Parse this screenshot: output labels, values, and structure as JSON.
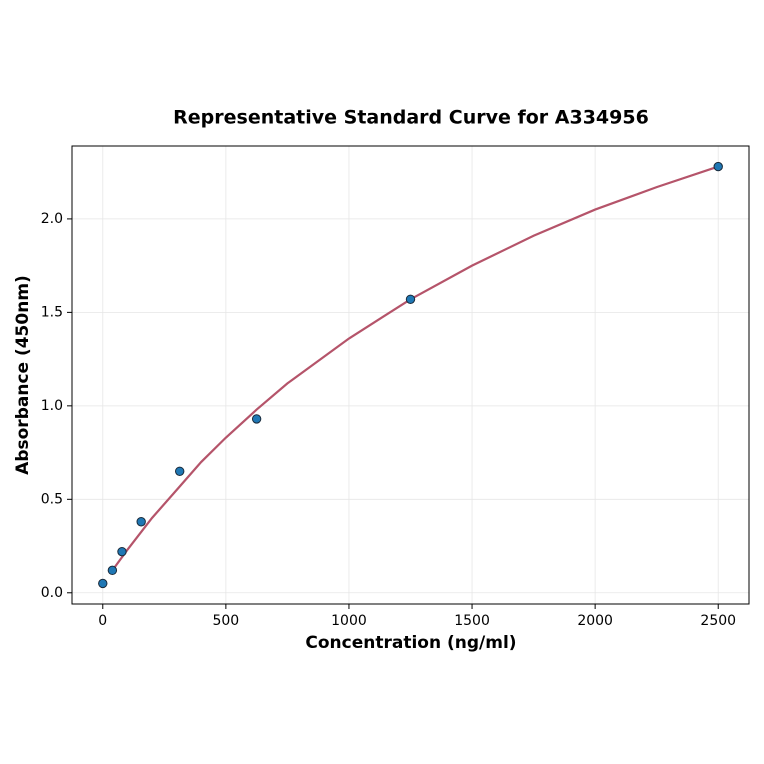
{
  "chart_data": {
    "type": "scatter",
    "title": "Representative Standard Curve for A334956",
    "x_label": "Concentration (ng/ml)",
    "y_label": "Absorbance (450nm)",
    "xlim": [
      -125,
      2625
    ],
    "ylim": [
      -0.06,
      2.39
    ],
    "xticks": [
      0,
      500,
      1000,
      1500,
      2000,
      2500
    ],
    "yticks": [
      {
        "value": 0,
        "label": "0.0"
      },
      {
        "value": 0.5,
        "label": "0.5"
      },
      {
        "value": 1,
        "label": "1.0"
      },
      {
        "value": 1.5,
        "label": "1.5"
      },
      {
        "value": 2,
        "label": "2.0"
      }
    ],
    "grid": true,
    "series": [
      {
        "type": "scatter",
        "color": "#1f77b4",
        "x": [
          0,
          39,
          78,
          156,
          312.5,
          625,
          1250,
          2500
        ],
        "values": [
          0.05,
          0.12,
          0.22,
          0.38,
          0.65,
          0.93,
          1.57,
          2.28
        ]
      },
      {
        "type": "line",
        "color": "#b5546a",
        "x": [
          39,
          100,
          200,
          300,
          400,
          500,
          625,
          750,
          1000,
          1250,
          1500,
          1750,
          2000,
          2250,
          2500
        ],
        "values": [
          0.12,
          0.23,
          0.4,
          0.55,
          0.7,
          0.83,
          0.98,
          1.12,
          1.36,
          1.57,
          1.75,
          1.91,
          2.05,
          2.17,
          2.28
        ]
      }
    ]
  }
}
